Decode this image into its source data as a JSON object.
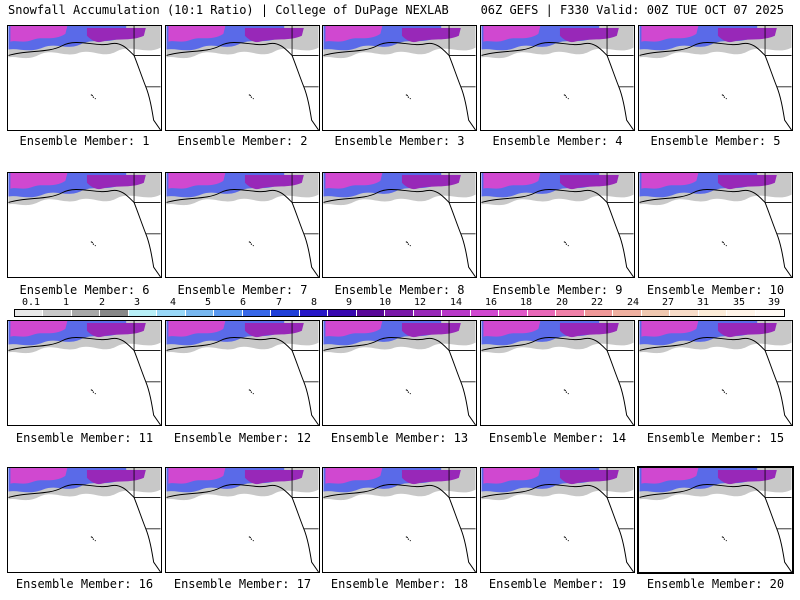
{
  "header": {
    "title_left": "Snowfall Accumulation (10:1 Ratio) | College of DuPage NEXLAB",
    "title_right": "06Z GEFS | F330 Valid: 00Z TUE OCT 07 2025"
  },
  "panels": [
    {
      "label": "Ensemble Member: 1"
    },
    {
      "label": "Ensemble Member: 2"
    },
    {
      "label": "Ensemble Member: 3"
    },
    {
      "label": "Ensemble Member: 4"
    },
    {
      "label": "Ensemble Member: 5"
    },
    {
      "label": "Ensemble Member: 6"
    },
    {
      "label": "Ensemble Member: 7"
    },
    {
      "label": "Ensemble Member: 8"
    },
    {
      "label": "Ensemble Member: 9"
    },
    {
      "label": "Ensemble Member: 10"
    },
    {
      "label": "Ensemble Member: 11"
    },
    {
      "label": "Ensemble Member: 12"
    },
    {
      "label": "Ensemble Member: 13"
    },
    {
      "label": "Ensemble Member: 14"
    },
    {
      "label": "Ensemble Member: 15"
    },
    {
      "label": "Ensemble Member: 16"
    },
    {
      "label": "Ensemble Member: 17"
    },
    {
      "label": "Ensemble Member: 18"
    },
    {
      "label": "Ensemble Member: 19"
    },
    {
      "label": "Ensemble Member: 20"
    }
  ],
  "legend": {
    "ticks": [
      "0.1",
      "1",
      "2",
      "3",
      "4",
      "5",
      "6",
      "7",
      "8",
      "9",
      "10",
      "12",
      "14",
      "16",
      "18",
      "20",
      "22",
      "24",
      "27",
      "31",
      "35",
      "39"
    ],
    "colors": [
      "#e8e8e8",
      "#c8c8c8",
      "#a8a8a8",
      "#888888",
      "#b8f0f8",
      "#98d8f8",
      "#78b8f0",
      "#5898f0",
      "#3868e8",
      "#2040d8",
      "#2818c8",
      "#3808b0",
      "#5a0898",
      "#7a18a8",
      "#9828b8",
      "#b838c8",
      "#d048d0",
      "#e058c8",
      "#e868b8",
      "#f080a8",
      "#f09898",
      "#f0b0a0",
      "#f0c8b0",
      "#f8dcc8",
      "#fcecd8",
      "#fff4e8",
      "#fffaf4"
    ]
  }
}
